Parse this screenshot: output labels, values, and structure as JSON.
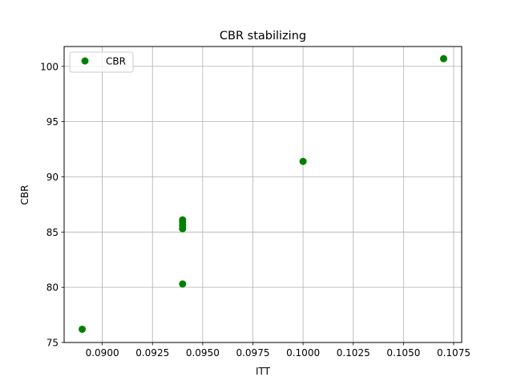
{
  "chart_data": {
    "type": "scatter",
    "title": "CBR stabilizing",
    "xlabel": "ITT",
    "ylabel": "CBR",
    "xlim": [
      0.0881,
      0.1079
    ],
    "ylim": [
      75,
      101.8
    ],
    "x_ticks": [
      0.09,
      0.0925,
      0.095,
      0.0975,
      0.1,
      0.1025,
      0.105,
      0.1075
    ],
    "x_tick_labels": [
      "0.0900",
      "0.0925",
      "0.0950",
      "0.0975",
      "0.1000",
      "0.1025",
      "0.1050",
      "0.1075"
    ],
    "y_ticks": [
      75,
      80,
      85,
      90,
      95,
      100
    ],
    "y_tick_labels": [
      "75",
      "80",
      "85",
      "90",
      "95",
      "100"
    ],
    "grid": true,
    "legend_position": "top-left",
    "series": [
      {
        "name": "CBR",
        "color": "#008000",
        "marker": "circle",
        "points": [
          {
            "x": 0.089,
            "y": 76.2
          },
          {
            "x": 0.094,
            "y": 80.3
          },
          {
            "x": 0.094,
            "y": 85.3
          },
          {
            "x": 0.094,
            "y": 85.6
          },
          {
            "x": 0.094,
            "y": 85.9
          },
          {
            "x": 0.094,
            "y": 86.1
          },
          {
            "x": 0.1,
            "y": 91.4
          },
          {
            "x": 0.107,
            "y": 100.7
          }
        ]
      }
    ]
  }
}
